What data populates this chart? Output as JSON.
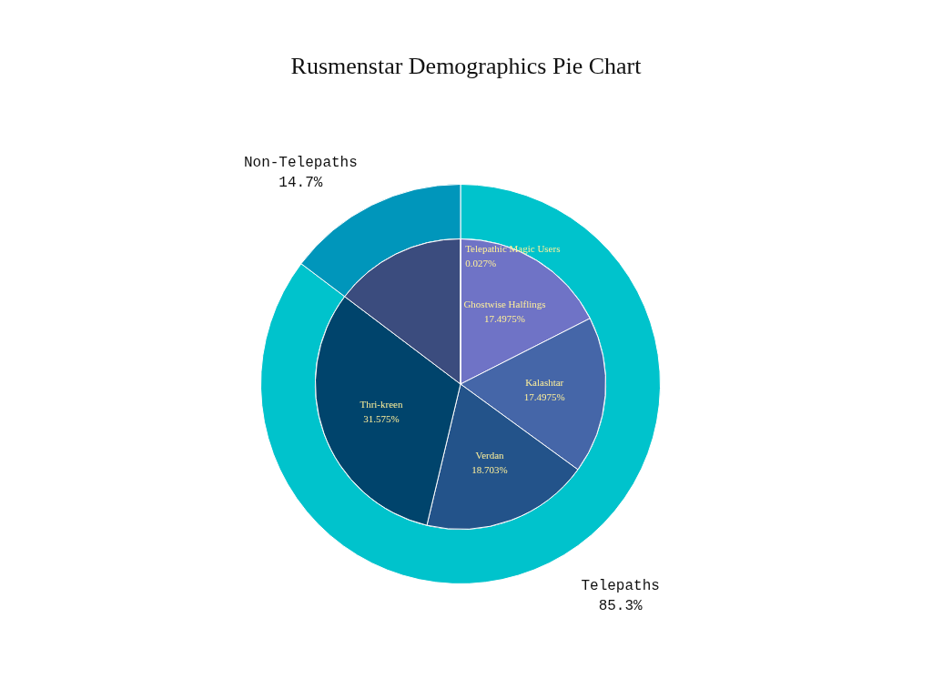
{
  "chart_data": [
    {
      "type": "donut",
      "title": "Rusmenstar Demographics Pie Chart",
      "categories": [
        "Telepaths",
        "Non-Telepaths"
      ],
      "values": [
        85.3,
        14.7
      ],
      "colors": [
        "#00c3cc",
        "#0096bb"
      ],
      "value_labels": [
        "85.3%",
        "14.7%"
      ]
    },
    {
      "type": "pie",
      "categories": [
        "Telepathic Magic Users",
        "Ghostwise Halflings",
        "Kalashtar",
        "Verdan",
        "Thri-kreen",
        null
      ],
      "values": [
        0.027,
        17.4975,
        17.4975,
        18.703,
        31.575,
        14.7
      ],
      "colors": [
        "#9a8fd6",
        "#6f73c6",
        "#4566a8",
        "#23538a",
        "#00446c",
        "#3b4c7e"
      ],
      "value_labels": [
        "0.027%",
        "17.4975%",
        "17.4975%",
        "18.703%",
        "31.575%",
        null
      ]
    }
  ]
}
